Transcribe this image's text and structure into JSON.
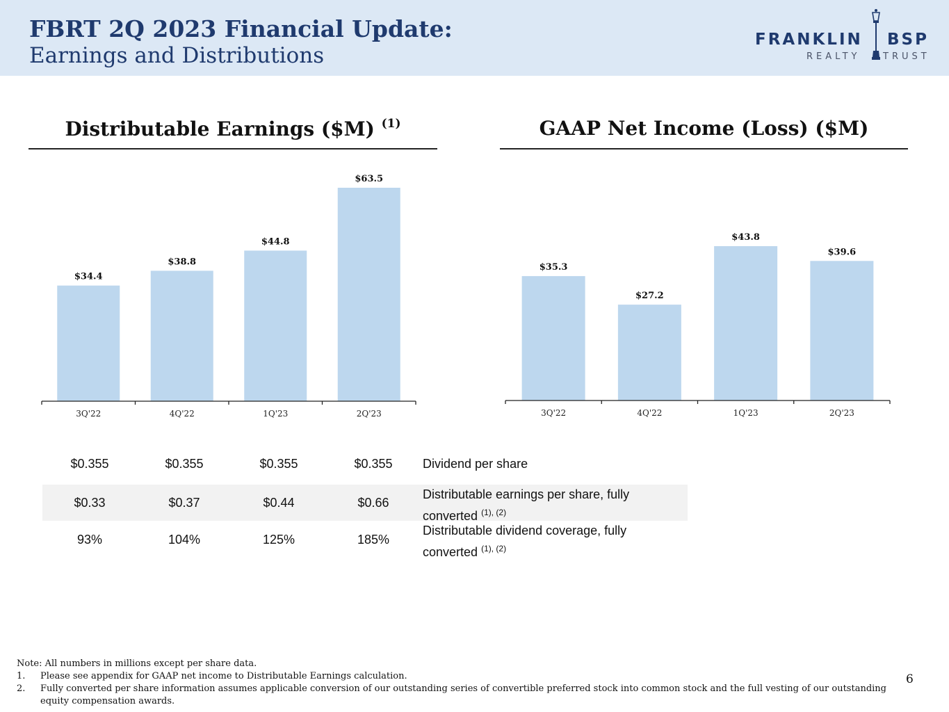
{
  "header": {
    "title_line1": "FBRT 2Q 2023 Financial Update:",
    "title_line2": "Earnings and Distributions",
    "logo_top_left": "FRANKLIN",
    "logo_top_right": "BSP",
    "logo_bottom_left": "REALTY",
    "logo_bottom_right": "TRUST"
  },
  "colors": {
    "bar": "#bdd7ee",
    "header_bg": "#dce8f5",
    "title": "#1f3a6e"
  },
  "chart_data": [
    {
      "type": "bar",
      "title": "Distributable Earnings ($M)",
      "title_footnote": "(1)",
      "categories": [
        "3Q'22",
        "4Q'22",
        "1Q'23",
        "2Q'23"
      ],
      "values": [
        34.4,
        38.8,
        44.8,
        63.5
      ],
      "labels": [
        "$34.4",
        "$38.8",
        "$44.8",
        "$63.5"
      ],
      "ylim": [
        0,
        65
      ],
      "xlabel": "",
      "ylabel": "",
      "grid": false
    },
    {
      "type": "bar",
      "title": "GAAP Net Income (Loss) ($M)",
      "categories": [
        "3Q'22",
        "4Q'22",
        "1Q'23",
        "2Q'23"
      ],
      "values": [
        35.3,
        27.2,
        43.8,
        39.6
      ],
      "labels": [
        "$35.3",
        "$27.2",
        "$43.8",
        "$39.6"
      ],
      "ylim": [
        0,
        65
      ],
      "xlabel": "",
      "ylabel": "",
      "grid": false
    }
  ],
  "table": {
    "rows": [
      {
        "values": [
          "$0.355",
          "$0.355",
          "$0.355",
          "$0.355"
        ],
        "label": "Dividend per share",
        "label_footnote": ""
      },
      {
        "values": [
          "$0.33",
          "$0.37",
          "$0.44",
          "$0.66"
        ],
        "label": "Distributable earnings per share, fully converted",
        "label_footnote": "(1), (2)"
      },
      {
        "values": [
          "93%",
          "104%",
          "125%",
          "185%"
        ],
        "label": "Distributable dividend coverage, fully converted",
        "label_footnote": "(1), (2)"
      }
    ]
  },
  "notes": {
    "intro": "Note: All numbers in millions except per share data.",
    "items": [
      {
        "num": "1.",
        "text": "Please see appendix for GAAP net income to Distributable Earnings calculation."
      },
      {
        "num": "2.",
        "text": "Fully converted per share information assumes applicable conversion of our outstanding series of convertible preferred stock into common stock and the full vesting of our outstanding equity compensation awards."
      }
    ]
  },
  "page_number": "6"
}
